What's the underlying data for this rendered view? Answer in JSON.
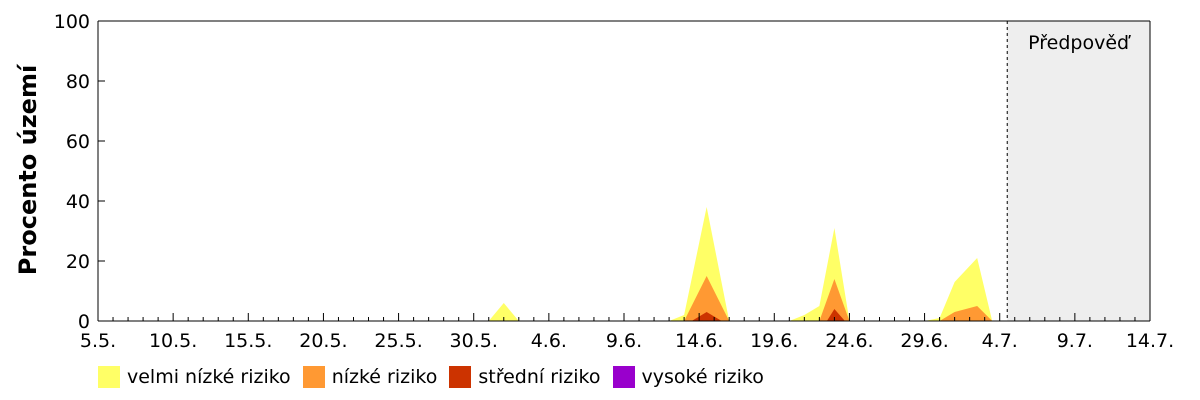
{
  "chart_data": {
    "type": "area",
    "stacked": true,
    "ylabel": "Procento území",
    "ylim": [
      0,
      100
    ],
    "yticks": [
      0,
      20,
      40,
      60,
      80,
      100
    ],
    "xlim_days": [
      0,
      70
    ],
    "xticks": [
      {
        "label": "5.5.",
        "day": 0
      },
      {
        "label": "10.5.",
        "day": 5
      },
      {
        "label": "15.5.",
        "day": 10
      },
      {
        "label": "20.5.",
        "day": 15
      },
      {
        "label": "25.5.",
        "day": 20
      },
      {
        "label": "30.5.",
        "day": 25
      },
      {
        "label": "4.6.",
        "day": 30
      },
      {
        "label": "9.6.",
        "day": 35
      },
      {
        "label": "14.6.",
        "day": 40
      },
      {
        "label": "19.6.",
        "day": 45
      },
      {
        "label": "24.6.",
        "day": 50
      },
      {
        "label": "29.6.",
        "day": 55
      },
      {
        "label": "4.7.",
        "day": 60
      },
      {
        "label": "9.7.",
        "day": 65
      },
      {
        "label": "14.7.",
        "day": 70
      }
    ],
    "forecast": {
      "label": "Předpověď",
      "start_day": 60.5,
      "end_day": 70
    },
    "series": [
      {
        "name": "velmi nízké riziko",
        "color": "#ffff66",
        "points": [
          [
            25,
            0
          ],
          [
            26,
            0
          ],
          [
            27,
            6
          ],
          [
            28,
            0
          ],
          [
            38,
            0
          ],
          [
            39,
            2
          ],
          [
            40.5,
            38
          ],
          [
            42,
            0
          ],
          [
            46,
            0
          ],
          [
            47,
            2
          ],
          [
            48,
            5
          ],
          [
            49,
            31
          ],
          [
            50,
            0
          ],
          [
            55,
            0
          ],
          [
            56,
            1
          ],
          [
            57,
            13
          ],
          [
            58.5,
            21
          ],
          [
            59.5,
            0
          ]
        ]
      },
      {
        "name": "nízké riziko",
        "color": "#ff9933",
        "points": [
          [
            39,
            0
          ],
          [
            40.5,
            15
          ],
          [
            42,
            0
          ],
          [
            48,
            0
          ],
          [
            49,
            14
          ],
          [
            50,
            0
          ],
          [
            56,
            0
          ],
          [
            57,
            3
          ],
          [
            58.5,
            5
          ],
          [
            59.5,
            0
          ]
        ]
      },
      {
        "name": "střední riziko",
        "color": "#cc3300",
        "points": [
          [
            39.5,
            0
          ],
          [
            40.5,
            3
          ],
          [
            41.5,
            0
          ],
          [
            48.5,
            0
          ],
          [
            49,
            4
          ],
          [
            49.7,
            0
          ]
        ]
      },
      {
        "name": "vysoké riziko",
        "color": "#9900cc",
        "points": []
      }
    ]
  }
}
